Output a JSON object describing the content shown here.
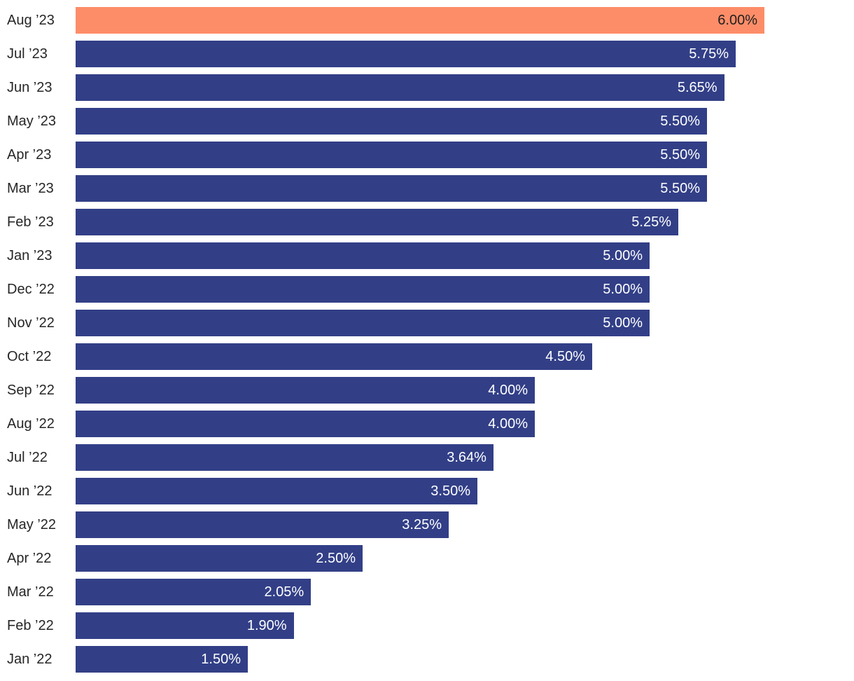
{
  "chart_data": {
    "type": "bar",
    "orientation": "horizontal",
    "title": "",
    "xlabel": "",
    "ylabel": "",
    "xlim": [
      0,
      6
    ],
    "grid": false,
    "legend": false,
    "categories": [
      "Aug ’23",
      "Jul ’23",
      "Jun ’23",
      "May ’23",
      "Apr ’23",
      "Mar ’23",
      "Feb ’23",
      "Jan ’23",
      "Dec ’22",
      "Nov ’22",
      "Oct ’22",
      "Sep ’22",
      "Aug ’22",
      "Jul ’22",
      "Jun ’22",
      "May ’22",
      "Apr ’22",
      "Mar ’22",
      "Feb ’22",
      "Jan ’22"
    ],
    "values": [
      6.0,
      5.75,
      5.65,
      5.5,
      5.5,
      5.5,
      5.25,
      5.0,
      5.0,
      5.0,
      4.5,
      4.0,
      4.0,
      3.64,
      3.5,
      3.25,
      2.5,
      2.05,
      1.9,
      1.5
    ],
    "value_labels": [
      "6.00%",
      "5.75%",
      "5.65%",
      "5.50%",
      "5.50%",
      "5.50%",
      "5.25%",
      "5.00%",
      "5.00%",
      "5.00%",
      "4.50%",
      "4.00%",
      "4.00%",
      "3.64%",
      "3.50%",
      "3.25%",
      "2.50%",
      "2.05%",
      "1.90%",
      "1.50%"
    ],
    "highlight_index": 0,
    "colors": {
      "bar": "#323F87",
      "highlight_bar": "#FD8D68",
      "value_text": "#FFFFFF",
      "highlight_value_text": "#1F1F1F",
      "category_text": "#262626",
      "background": "#FFFFFF"
    }
  }
}
